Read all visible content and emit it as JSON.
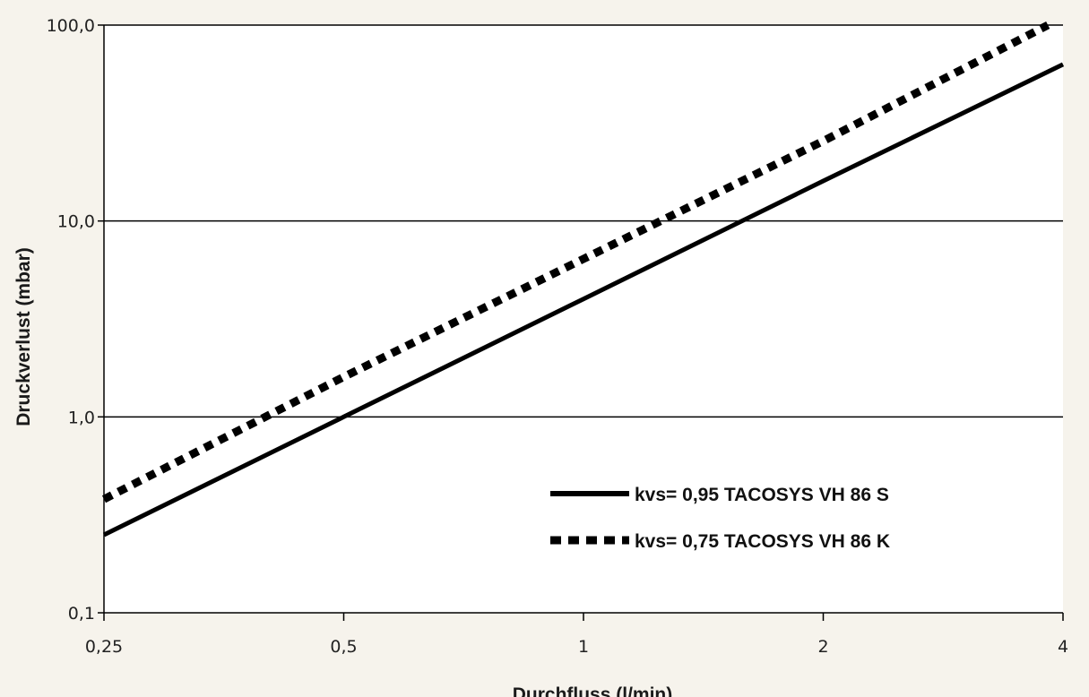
{
  "header": {
    "title_fragment": ""
  },
  "chart_data": {
    "type": "line",
    "title": "",
    "xlabel": "Durchfluss (l/min)",
    "ylabel": "Druckverlust (mbar)",
    "xscale": "log",
    "yscale": "log",
    "xlim": [
      0.25,
      4
    ],
    "ylim": [
      0.1,
      100
    ],
    "xticks": [
      0.25,
      0.5,
      1,
      2,
      4
    ],
    "xtick_labels": [
      "0,25",
      "0,5",
      "1",
      "2",
      "4"
    ],
    "yticks": [
      0.1,
      1,
      10,
      100
    ],
    "ytick_labels": [
      "0,1",
      "1,0",
      "10,0",
      "100,0"
    ],
    "grid": "horizontal",
    "legend_position": "bottom-right",
    "series": [
      {
        "name": "kvs= 0,95  TACOSYS VH 86 S",
        "style": "solid",
        "color": "#000000",
        "x": [
          0.25,
          0.5,
          1,
          2,
          4
        ],
        "y": [
          0.25,
          1.0,
          4.0,
          16.0,
          63.0
        ]
      },
      {
        "name": "kvs= 0,75  TACOSYS VH 86 K",
        "style": "dashed",
        "color": "#000000",
        "x": [
          0.25,
          0.5,
          1,
          2,
          3.83
        ],
        "y": [
          0.38,
          1.6,
          6.4,
          25.6,
          100
        ]
      }
    ]
  }
}
